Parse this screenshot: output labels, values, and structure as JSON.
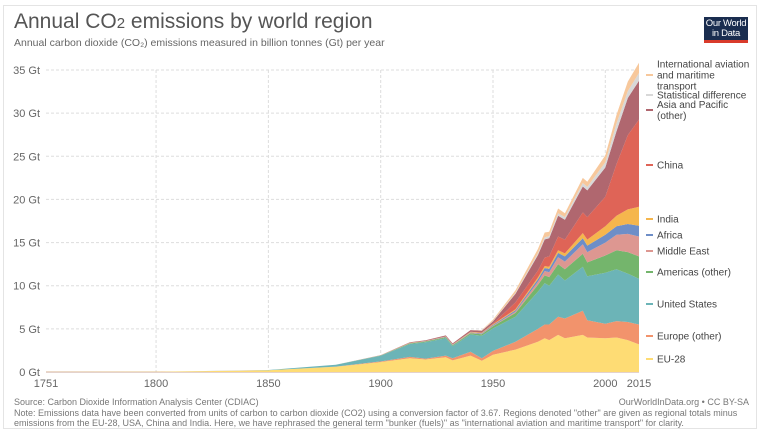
{
  "header": {
    "title_pre": "Annual CO",
    "title_sub": "2",
    "title_post": " emissions by world region",
    "subtitle": "Annual carbon dioxide (CO₂) emissions measured in billion tonnes (Gt) per year",
    "logo_line1": "Our World",
    "logo_line2": "in Data",
    "logo_bg": "#1a2d4f",
    "logo_accent": "#d93b2b"
  },
  "footer": {
    "source": "Source: Carbon Dioxide Information Analysis Center (CDIAC)",
    "credit": "OurWorldInData.org • CC BY-SA",
    "note": "Note: Emissions data have been converted from units of carbon to carbon dioxide (CO2) using a conversion factor of 3.67. Regions denoted \"other\" are given as regional totals minus emissions from the EU-28, USA, China and India. Here, we have rephrased the general term \"bunker (fuels)\" as \"international aviation and maritime transport\" for clarity."
  },
  "chart_data": {
    "type": "area",
    "stacked": true,
    "title": "Annual CO₂ emissions by world region",
    "subtitle": "Annual carbon dioxide (CO₂) emissions measured in billion tonnes (Gt) per year",
    "xlabel": "",
    "ylabel": "",
    "xlim": [
      1751,
      2015
    ],
    "ylim": [
      0,
      35
    ],
    "x_ticks": [
      1751,
      1800,
      1850,
      1900,
      1950,
      2000,
      2015
    ],
    "y_ticks": [
      0,
      5,
      10,
      15,
      20,
      25,
      30,
      35
    ],
    "y_tick_labels": [
      "0 Gt",
      "5 Gt",
      "10 Gt",
      "15 Gt",
      "20 Gt",
      "25 Gt",
      "30 Gt",
      "35 Gt"
    ],
    "grid": true,
    "legend_position": "right",
    "x": [
      1751,
      1800,
      1850,
      1880,
      1900,
      1913,
      1920,
      1929,
      1932,
      1940,
      1945,
      1950,
      1960,
      1970,
      1973,
      1975,
      1979,
      1982,
      1990,
      1992,
      2000,
      2005,
      2010,
      2015
    ],
    "series": [
      {
        "name": "EU-28",
        "color": "#fedc74",
        "values": [
          0.01,
          0.03,
          0.2,
          0.6,
          1.15,
          1.6,
          1.45,
          1.7,
          1.35,
          1.9,
          1.3,
          2.0,
          2.6,
          3.5,
          3.9,
          3.7,
          4.3,
          3.9,
          4.3,
          4.0,
          3.9,
          4.0,
          3.7,
          3.2
        ]
      },
      {
        "name": "Europe (other)",
        "color": "#f2936c",
        "values": [
          0.0,
          0.0,
          0.01,
          0.03,
          0.08,
          0.15,
          0.1,
          0.2,
          0.25,
          0.45,
          0.3,
          0.45,
          0.9,
          1.5,
          1.6,
          1.8,
          2.1,
          2.3,
          2.8,
          2.0,
          1.7,
          1.9,
          2.1,
          2.3
        ]
      },
      {
        "name": "United States",
        "color": "#6cb4b7",
        "values": [
          0.0,
          0.0,
          0.02,
          0.2,
          0.65,
          1.5,
          1.9,
          2.0,
          1.4,
          2.0,
          2.6,
          2.6,
          2.9,
          4.3,
          4.8,
          4.5,
          4.9,
          4.4,
          5.1,
          5.1,
          5.9,
          6.0,
          5.6,
          5.3
        ]
      },
      {
        "name": "Americas (other)",
        "color": "#74b56c",
        "values": [
          0.0,
          0.0,
          0.0,
          0.01,
          0.03,
          0.07,
          0.08,
          0.12,
          0.1,
          0.15,
          0.18,
          0.25,
          0.45,
          0.8,
          0.9,
          1.0,
          1.2,
          1.3,
          1.5,
          1.6,
          2.0,
          2.2,
          2.5,
          2.6
        ]
      },
      {
        "name": "Middle East",
        "color": "#dd9791",
        "values": [
          0.0,
          0.0,
          0.0,
          0.0,
          0.0,
          0.01,
          0.01,
          0.02,
          0.02,
          0.03,
          0.04,
          0.06,
          0.15,
          0.35,
          0.5,
          0.55,
          0.8,
          0.9,
          1.1,
          1.2,
          1.5,
          1.8,
          2.1,
          2.3
        ]
      },
      {
        "name": "Africa",
        "color": "#6e8ec7",
        "values": [
          0.0,
          0.0,
          0.0,
          0.0,
          0.01,
          0.02,
          0.02,
          0.04,
          0.03,
          0.05,
          0.06,
          0.1,
          0.15,
          0.3,
          0.35,
          0.4,
          0.5,
          0.6,
          0.7,
          0.75,
          0.9,
          1.0,
          1.15,
          1.25
        ]
      },
      {
        "name": "India",
        "color": "#f5b64d",
        "values": [
          0.0,
          0.0,
          0.0,
          0.0,
          0.01,
          0.02,
          0.03,
          0.04,
          0.04,
          0.05,
          0.06,
          0.08,
          0.12,
          0.2,
          0.22,
          0.25,
          0.3,
          0.35,
          0.6,
          0.7,
          1.0,
          1.2,
          1.7,
          2.2
        ]
      },
      {
        "name": "China",
        "color": "#df6457",
        "values": [
          0.0,
          0.0,
          0.0,
          0.0,
          0.0,
          0.01,
          0.01,
          0.02,
          0.02,
          0.03,
          0.03,
          0.08,
          0.8,
          0.8,
          1.0,
          1.2,
          1.6,
          1.6,
          2.4,
          2.6,
          3.4,
          6.0,
          8.6,
          10.1
        ]
      },
      {
        "name": "Asia and Pacific (other)",
        "color": "#b0676f",
        "values": [
          0.0,
          0.0,
          0.0,
          0.01,
          0.03,
          0.06,
          0.07,
          0.1,
          0.1,
          0.2,
          0.2,
          0.25,
          1.0,
          1.8,
          2.1,
          2.1,
          2.4,
          2.3,
          3.0,
          3.1,
          3.4,
          3.8,
          4.3,
          4.5
        ]
      },
      {
        "name": "Statistical difference",
        "color": "#d8d8d8",
        "values": [
          0.0,
          0.0,
          0.0,
          0.0,
          0.0,
          0.0,
          0.0,
          0.0,
          0.0,
          0.0,
          0.05,
          0.05,
          0.1,
          0.2,
          0.25,
          0.25,
          0.3,
          0.3,
          0.4,
          0.4,
          0.6,
          0.9,
          0.8,
          0.9
        ]
      },
      {
        "name": "International aviation and maritime transport",
        "color": "#f7c89c",
        "values": [
          0.0,
          0.0,
          0.0,
          0.0,
          0.0,
          0.0,
          0.0,
          0.0,
          0.0,
          0.0,
          0.05,
          0.15,
          0.3,
          0.5,
          0.55,
          0.5,
          0.55,
          0.45,
          0.6,
          0.6,
          0.8,
          1.0,
          1.1,
          1.2
        ]
      }
    ],
    "legend_labels": [
      {
        "name": "International aviation and maritime transport",
        "lines": [
          "International aviation",
          "and maritime",
          "transport"
        ],
        "color": "#f7c89c"
      },
      {
        "name": "Statistical difference",
        "lines": [
          "Statistical difference"
        ],
        "color": "#d8d8d8"
      },
      {
        "name": "Asia and Pacific (other)",
        "lines": [
          "Asia and Pacific",
          "(other)"
        ],
        "color": "#b0676f"
      },
      {
        "name": "China",
        "lines": [
          "China"
        ],
        "color": "#df6457"
      },
      {
        "name": "India",
        "lines": [
          "India"
        ],
        "color": "#f5b64d"
      },
      {
        "name": "Africa",
        "lines": [
          "Africa"
        ],
        "color": "#6e8ec7"
      },
      {
        "name": "Middle East",
        "lines": [
          "Middle East"
        ],
        "color": "#dd9791"
      },
      {
        "name": "Americas (other)",
        "lines": [
          "Americas (other)"
        ],
        "color": "#74b56c"
      },
      {
        "name": "United States",
        "lines": [
          "United States"
        ],
        "color": "#6cb4b7"
      },
      {
        "name": "Europe (other)",
        "lines": [
          "Europe (other)"
        ],
        "color": "#f2936c"
      },
      {
        "name": "EU-28",
        "lines": [
          "EU-28"
        ],
        "color": "#fedc74"
      }
    ]
  }
}
